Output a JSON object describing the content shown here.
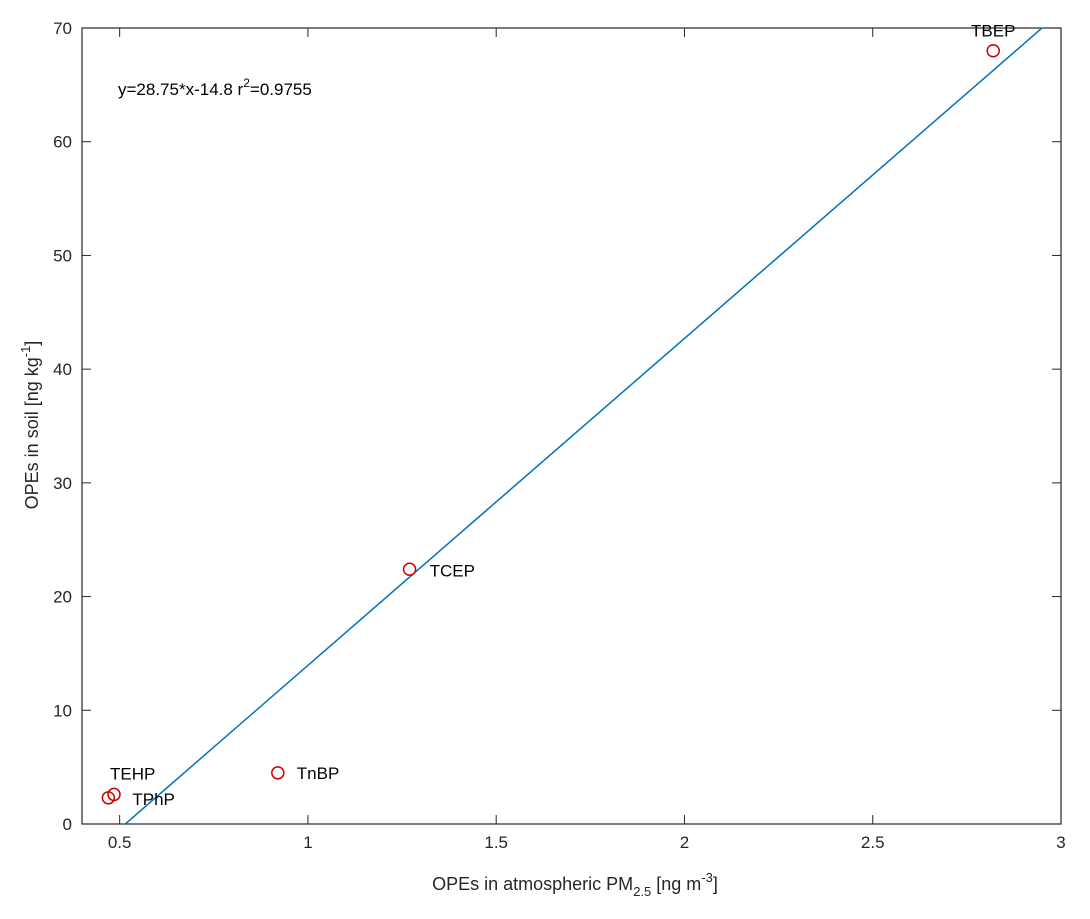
{
  "chart_data": {
    "type": "scatter",
    "xlabel": {
      "main": "OPEs in atmospheric PM",
      "sub": "2.5",
      "unit_pre": " [ng m",
      "sup": "-3",
      "unit_post": "]"
    },
    "ylabel": {
      "main": "OPEs in soil [ng kg",
      "sup": "-1",
      "post": "]"
    },
    "xlim": [
      0.4,
      3
    ],
    "ylim": [
      0,
      70
    ],
    "xticks": [
      0.5,
      1,
      1.5,
      2,
      2.5,
      3
    ],
    "xtick_labels": [
      "0.5",
      "1",
      "1.5",
      "2",
      "2.5",
      "3"
    ],
    "yticks": [
      0,
      10,
      20,
      30,
      40,
      50,
      60,
      70
    ],
    "ytick_labels": [
      "0",
      "10",
      "20",
      "30",
      "40",
      "50",
      "60",
      "70"
    ],
    "grid": false,
    "points": [
      {
        "label": "TBEP",
        "x": 2.82,
        "y": 68.0
      },
      {
        "label": "TCEP",
        "x": 1.27,
        "y": 22.4
      },
      {
        "label": "TnBP",
        "x": 0.92,
        "y": 4.5
      },
      {
        "label": "TEHP",
        "x": 0.485,
        "y": 2.6
      },
      {
        "label": "TPhP",
        "x": 0.47,
        "y": 2.3
      }
    ],
    "fit_line": {
      "slope": 28.75,
      "intercept": -14.8,
      "x_range": [
        0.515,
        2.95
      ]
    },
    "equation": {
      "text": "y=28.75*x-14.8 r",
      "sup": "2",
      "post": "=0.9755"
    },
    "colors": {
      "points": "#cc0000",
      "line": "#0072bd",
      "axes": "#262626"
    }
  }
}
